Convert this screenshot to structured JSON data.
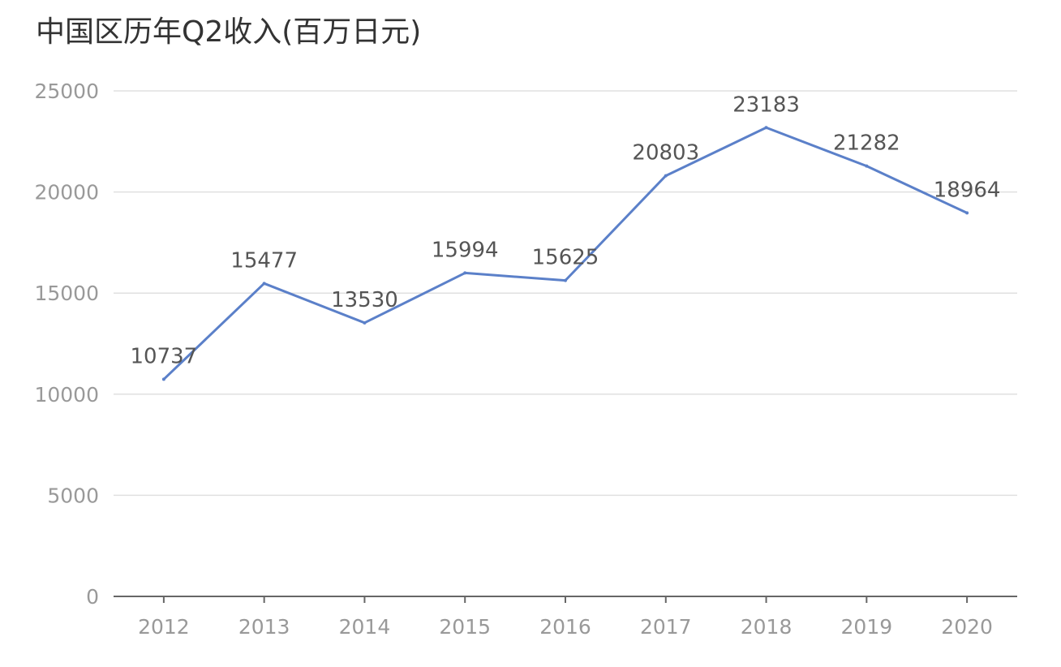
{
  "title": "中国区历年Q2收入(百万日元)",
  "chart_data": {
    "type": "line",
    "title": "中国区历年Q2收入(百万日元)",
    "categories": [
      "2012",
      "2013",
      "2014",
      "2015",
      "2016",
      "2017",
      "2018",
      "2019",
      "2020"
    ],
    "values": [
      10737,
      15477,
      13530,
      15994,
      15625,
      20803,
      23183,
      21282,
      18964
    ],
    "data_labels": [
      "10737",
      "15477",
      "13530",
      "15994",
      "15625",
      "20803",
      "23183",
      "21282",
      "18964"
    ],
    "ylim": [
      0,
      25000
    ],
    "yticks": [
      0,
      5000,
      10000,
      15000,
      20000,
      25000
    ],
    "ytick_labels": [
      "0",
      "5000",
      "10000",
      "15000",
      "20000",
      "25000"
    ],
    "xlabel": "",
    "ylabel": "",
    "grid": true,
    "legend": "none",
    "line_color": "#5b80c9",
    "grid_color": "#e0e0e0",
    "axis_color": "#666666"
  }
}
